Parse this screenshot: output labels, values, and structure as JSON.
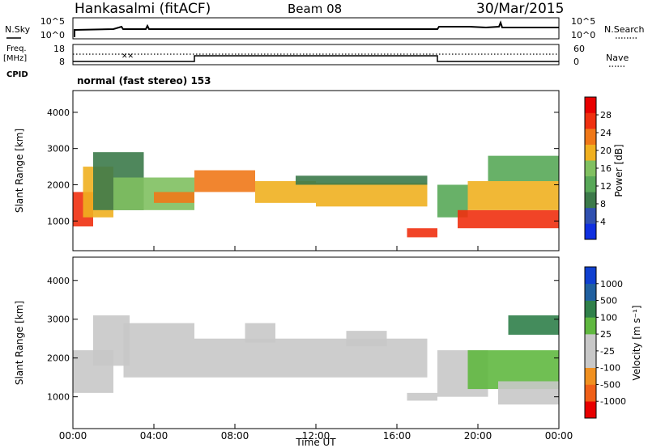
{
  "header": {
    "station": "Hankasalmi (fitACF)",
    "beam": "Beam 08",
    "date": "30/Mar/2015"
  },
  "noise_panel": {
    "left_label": "N.Sky",
    "right_label": "N.Search",
    "left_ticks": [
      "10^5",
      "10^0"
    ],
    "right_ticks": [
      "10^5",
      "10^0"
    ]
  },
  "freq_panel": {
    "left_label_1": "Freq.",
    "left_label_2": "[MHz]",
    "left_label_3": "CPID",
    "right_label": "Nave",
    "left_ticks": [
      "18",
      "8"
    ],
    "right_ticks": [
      "60",
      "0"
    ]
  },
  "cpid_text": "normal (fast stereo) 153",
  "x_axis": {
    "title": "Time UT",
    "ticks": [
      "00:00",
      "04:00",
      "08:00",
      "12:00",
      "16:00",
      "20:00",
      "00:00"
    ]
  },
  "colors": {
    "power": [
      "#1030e0",
      "#3050b0",
      "#3c7a4a",
      "#58a858",
      "#80c060",
      "#f0b020",
      "#f07818",
      "#ef3010",
      "#e80000"
    ],
    "velocity": [
      "#e80000",
      "#f06018",
      "#f09020",
      "#c8c8c8",
      "#c8c8c8",
      "#60b840",
      "#30804a",
      "#2060a0",
      "#1040d0"
    ]
  },
  "chart_data": [
    {
      "type": "heatmap",
      "title": "Power",
      "ylabel": "Slant Range [km]",
      "ylim": [
        180,
        4600
      ],
      "yticks": [
        "4000",
        "3000",
        "2000",
        "1000"
      ],
      "x_range_hours": [
        0,
        24
      ],
      "colorbar": {
        "label": "Power [dB]",
        "ticks": [
          "28",
          "24",
          "20",
          "16",
          "12",
          "8",
          "4"
        ],
        "range": [
          0,
          32
        ]
      },
      "bands": [
        {
          "t0": 0.0,
          "t1": 1.0,
          "r0": 850,
          "r1": 1800,
          "level": 28
        },
        {
          "t0": 0.5,
          "t1": 2.0,
          "r0": 1100,
          "r1": 2500,
          "level": 20
        },
        {
          "t0": 1.0,
          "t1": 3.5,
          "r0": 1300,
          "r1": 2900,
          "level": 10
        },
        {
          "t0": 2.0,
          "t1": 6.0,
          "r0": 1300,
          "r1": 2200,
          "level": 16
        },
        {
          "t0": 4.0,
          "t1": 6.0,
          "r0": 1500,
          "r1": 1800,
          "level": 24
        },
        {
          "t0": 6.0,
          "t1": 9.0,
          "r0": 1800,
          "r1": 2400,
          "level": 22
        },
        {
          "t0": 9.0,
          "t1": 12.0,
          "r0": 1500,
          "r1": 2100,
          "level": 18
        },
        {
          "t0": 12.0,
          "t1": 17.5,
          "r0": 1400,
          "r1": 2050,
          "level": 20
        },
        {
          "t0": 11.0,
          "t1": 17.5,
          "r0": 2000,
          "r1": 2250,
          "level": 10
        },
        {
          "t0": 16.5,
          "t1": 18.0,
          "r0": 550,
          "r1": 800,
          "level": 26
        },
        {
          "t0": 18.0,
          "t1": 19.5,
          "r0": 1100,
          "r1": 2000,
          "level": 14
        },
        {
          "t0": 19.0,
          "t1": 24.0,
          "r0": 800,
          "r1": 1300,
          "level": 28
        },
        {
          "t0": 19.5,
          "t1": 24.0,
          "r0": 1300,
          "r1": 2100,
          "level": 18
        },
        {
          "t0": 20.5,
          "t1": 24.0,
          "r0": 2100,
          "r1": 2800,
          "level": 12
        }
      ]
    },
    {
      "type": "heatmap",
      "title": "Velocity",
      "ylabel": "Slant Range [km]",
      "ylim": [
        180,
        4600
      ],
      "yticks": [
        "4000",
        "3000",
        "2000",
        "1000"
      ],
      "x_range_hours": [
        0,
        24
      ],
      "colorbar": {
        "label": "Velocity [m s⁻¹]",
        "ticks": [
          "1000",
          "500",
          "100",
          "25",
          "-25",
          "-100",
          "-500",
          "-1000"
        ],
        "range": [
          -1000,
          1000
        ]
      },
      "bands": [
        {
          "t0": 0.0,
          "t1": 2.0,
          "r0": 1100,
          "r1": 2200,
          "level": -300
        },
        {
          "t0": 1.0,
          "t1": 2.8,
          "r0": 1800,
          "r1": 3100,
          "level": 60
        },
        {
          "t0": 2.5,
          "t1": 6.0,
          "r0": 1500,
          "r1": 2900,
          "level": 0
        },
        {
          "t0": 6.0,
          "t1": 17.5,
          "r0": 1500,
          "r1": 2500,
          "level": 0
        },
        {
          "t0": 8.5,
          "t1": 10.0,
          "r0": 2400,
          "r1": 2900,
          "level": -200
        },
        {
          "t0": 13.5,
          "t1": 15.5,
          "r0": 2300,
          "r1": 2700,
          "level": 30
        },
        {
          "t0": 16.5,
          "t1": 18.0,
          "r0": 900,
          "r1": 1100,
          "level": 0
        },
        {
          "t0": 18.0,
          "t1": 20.5,
          "r0": 1000,
          "r1": 2200,
          "level": -150
        },
        {
          "t0": 19.5,
          "t1": 24.0,
          "r0": 1200,
          "r1": 2200,
          "level": 150
        },
        {
          "t0": 21.0,
          "t1": 24.0,
          "r0": 800,
          "r1": 1400,
          "level": 60
        },
        {
          "t0": 21.5,
          "t1": 24.0,
          "r0": 2600,
          "r1": 3100,
          "level": 400
        }
      ]
    }
  ]
}
